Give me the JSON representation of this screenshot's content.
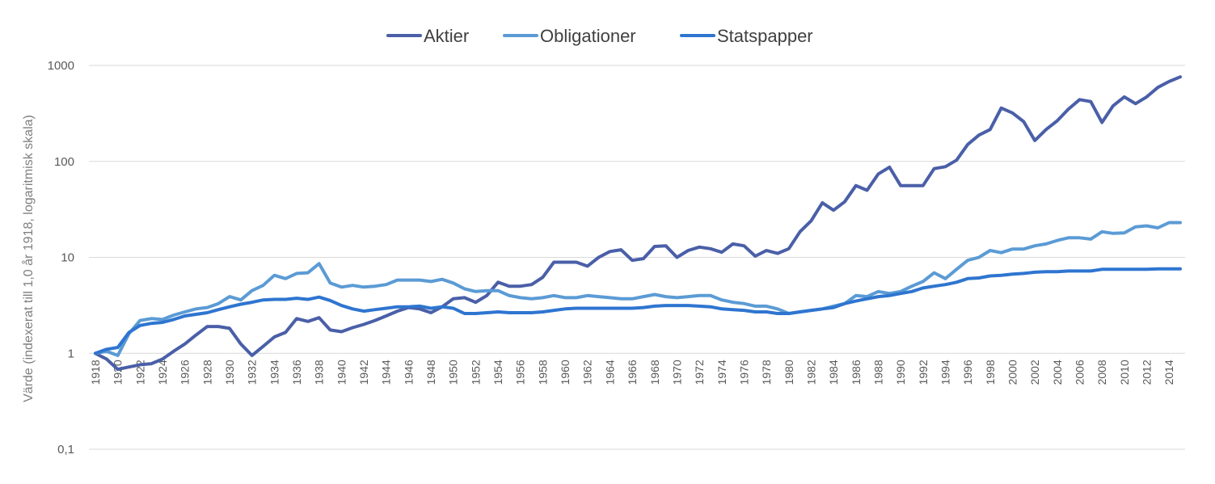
{
  "chart_data": {
    "type": "line",
    "ylabel": "Värde (indexerat till 1,0 år 1918, logaritmisk skala)",
    "yscale": "log",
    "ylim": [
      0.1,
      1000
    ],
    "yticks": [
      "0,1",
      "1",
      "10",
      "100",
      "1000"
    ],
    "xlim": [
      1918,
      2015
    ],
    "xticks": [
      "1918",
      "1920",
      "1922",
      "1924",
      "1926",
      "1928",
      "1930",
      "1932",
      "1934",
      "1936",
      "1938",
      "1940",
      "1942",
      "1944",
      "1946",
      "1948",
      "1950",
      "1952",
      "1954",
      "1956",
      "1958",
      "1960",
      "1962",
      "1964",
      "1966",
      "1968",
      "1970",
      "1972",
      "1974",
      "1976",
      "1978",
      "1980",
      "1982",
      "1984",
      "1986",
      "1988",
      "1990",
      "1992",
      "1994",
      "1996",
      "1998",
      "2000",
      "2002",
      "2004",
      "2006",
      "2008",
      "2010",
      "2012",
      "2014"
    ],
    "grid": true,
    "legend_position": "top",
    "x": [
      1918,
      1919,
      1920,
      1921,
      1922,
      1923,
      1924,
      1925,
      1926,
      1927,
      1928,
      1929,
      1930,
      1931,
      1932,
      1933,
      1934,
      1935,
      1936,
      1937,
      1938,
      1939,
      1940,
      1941,
      1942,
      1943,
      1944,
      1945,
      1946,
      1947,
      1948,
      1949,
      1950,
      1951,
      1952,
      1953,
      1954,
      1955,
      1956,
      1957,
      1958,
      1959,
      1960,
      1961,
      1962,
      1963,
      1964,
      1965,
      1966,
      1967,
      1968,
      1969,
      1970,
      1971,
      1972,
      1973,
      1974,
      1975,
      1976,
      1977,
      1978,
      1979,
      1980,
      1981,
      1982,
      1983,
      1984,
      1985,
      1986,
      1987,
      1988,
      1989,
      1990,
      1991,
      1992,
      1993,
      1994,
      1995,
      1996,
      1997,
      1998,
      1999,
      2000,
      2001,
      2002,
      2003,
      2004,
      2005,
      2006,
      2007,
      2008,
      2009,
      2010,
      2011,
      2012,
      2013,
      2014,
      2015
    ],
    "series": [
      {
        "name": "Aktier",
        "color": "#4a5fa8",
        "values": [
          1.0,
          0.87,
          0.68,
          0.72,
          0.76,
          0.78,
          0.87,
          1.05,
          1.25,
          1.55,
          1.9,
          1.9,
          1.82,
          1.25,
          0.95,
          1.18,
          1.48,
          1.65,
          2.3,
          2.15,
          2.35,
          1.75,
          1.68,
          1.85,
          2.0,
          2.2,
          2.45,
          2.75,
          3.0,
          2.9,
          2.65,
          3.05,
          3.7,
          3.8,
          3.4,
          4.0,
          5.5,
          5.0,
          5.0,
          5.2,
          6.2,
          8.9,
          8.9,
          8.9,
          8.1,
          10.0,
          11.5,
          12.0,
          9.3,
          9.7,
          13.0,
          13.2,
          10.0,
          11.8,
          12.8,
          12.3,
          11.3,
          13.8,
          13.2,
          10.3,
          11.8,
          11.0,
          12.3,
          18.5,
          24.0,
          37.0,
          31.0,
          38.0,
          56.0,
          50.0,
          74.0,
          87.0,
          56.0,
          56.0,
          56.0,
          84.0,
          88.0,
          103.0,
          150.0,
          188.0,
          215.0,
          360.0,
          320.0,
          260.0,
          165.0,
          215.0,
          265.0,
          350.0,
          440.0,
          420.0,
          255.0,
          380.0,
          470.0,
          400.0,
          470.0,
          590.0,
          680.0,
          760.0
        ]
      },
      {
        "name": "Obligationer",
        "color": "#5b9bd5",
        "values": [
          1.0,
          1.05,
          0.95,
          1.6,
          2.2,
          2.3,
          2.25,
          2.5,
          2.7,
          2.9,
          3.0,
          3.3,
          3.9,
          3.6,
          4.5,
          5.1,
          6.5,
          6.0,
          6.8,
          6.9,
          8.6,
          5.4,
          4.9,
          5.1,
          4.9,
          5.0,
          5.2,
          5.8,
          5.8,
          5.8,
          5.6,
          5.9,
          5.4,
          4.7,
          4.4,
          4.5,
          4.5,
          4.0,
          3.8,
          3.7,
          3.8,
          4.0,
          3.8,
          3.8,
          4.0,
          3.9,
          3.8,
          3.7,
          3.7,
          3.9,
          4.1,
          3.9,
          3.8,
          3.9,
          4.0,
          4.0,
          3.6,
          3.4,
          3.3,
          3.1,
          3.1,
          2.9,
          2.6,
          2.7,
          2.8,
          2.9,
          3.1,
          3.3,
          4.0,
          3.9,
          4.4,
          4.2,
          4.4,
          5.0,
          5.6,
          6.9,
          6.0,
          7.5,
          9.3,
          10.0,
          11.8,
          11.2,
          12.2,
          12.2,
          13.2,
          13.8,
          15.0,
          16.0,
          16.0,
          15.5,
          18.5,
          17.8,
          18.0,
          20.8,
          21.3,
          20.3,
          23.0,
          23.0
        ]
      },
      {
        "name": "Statspapper",
        "color": "#2e75d0",
        "values": [
          1.0,
          1.1,
          1.15,
          1.65,
          1.95,
          2.05,
          2.1,
          2.25,
          2.45,
          2.55,
          2.65,
          2.85,
          3.05,
          3.25,
          3.4,
          3.6,
          3.65,
          3.65,
          3.75,
          3.65,
          3.85,
          3.55,
          3.15,
          2.9,
          2.75,
          2.85,
          2.95,
          3.05,
          3.05,
          3.1,
          2.95,
          3.05,
          2.95,
          2.6,
          2.6,
          2.65,
          2.7,
          2.65,
          2.65,
          2.65,
          2.7,
          2.8,
          2.9,
          2.95,
          2.95,
          2.95,
          2.95,
          2.95,
          2.95,
          3.0,
          3.1,
          3.15,
          3.15,
          3.15,
          3.1,
          3.05,
          2.9,
          2.85,
          2.8,
          2.7,
          2.7,
          2.6,
          2.6,
          2.7,
          2.8,
          2.9,
          3.0,
          3.3,
          3.5,
          3.7,
          3.9,
          4.0,
          4.2,
          4.4,
          4.8,
          5.0,
          5.2,
          5.5,
          6.0,
          6.1,
          6.4,
          6.5,
          6.7,
          6.8,
          7.0,
          7.1,
          7.1,
          7.2,
          7.2,
          7.2,
          7.5,
          7.5,
          7.5,
          7.5,
          7.5,
          7.6,
          7.6,
          7.6
        ]
      }
    ]
  }
}
